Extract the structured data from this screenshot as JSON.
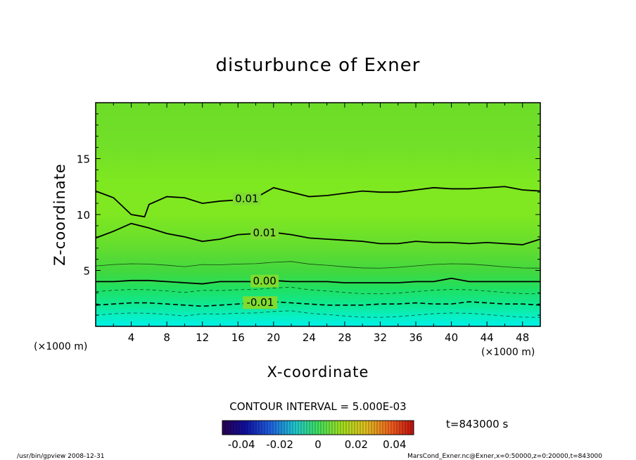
{
  "chart_data": {
    "type": "heatmap",
    "title": "disturbunce of Exner",
    "xlabel": "X-coordinate",
    "ylabel": "Z-coordinate",
    "x_unit": "(×1000 m)",
    "y_unit": "(×1000 m)",
    "xlim": [
      0,
      50
    ],
    "ylim": [
      0,
      20
    ],
    "x_ticks": [
      "4",
      "8",
      "12",
      "16",
      "20",
      "24",
      "28",
      "32",
      "36",
      "40",
      "44",
      "48"
    ],
    "y_ticks": [
      "5",
      "10",
      "15"
    ],
    "contour_interval_text": "CONTOUR INTERVAL = 5.000E-03",
    "time_text": "t=843000 s",
    "colorbar_ticks": [
      "-0.04",
      "-0.02",
      "0",
      "0.02",
      "0.04"
    ],
    "colorbar_range": [
      -0.05,
      0.05
    ],
    "contours": [
      {
        "label": "0.01",
        "level": 0.01,
        "x": [
          0,
          2,
          4,
          5.5,
          6,
          8,
          10,
          12,
          14,
          16,
          18,
          20,
          22,
          24,
          26,
          28,
          30,
          32,
          34,
          36,
          38,
          40,
          42,
          44,
          46,
          48,
          50
        ],
        "y": [
          12.1,
          11.5,
          10.0,
          9.8,
          10.9,
          11.6,
          11.5,
          11.0,
          11.2,
          11.3,
          11.5,
          12.4,
          12.0,
          11.6,
          11.7,
          11.9,
          12.1,
          12.0,
          12.0,
          12.2,
          12.4,
          12.3,
          12.3,
          12.4,
          12.5,
          12.2,
          12.1
        ]
      },
      {
        "label": "0.01",
        "level": 0.01,
        "x": [
          0,
          2,
          4,
          6,
          8,
          10,
          12,
          14,
          16,
          18,
          20,
          22,
          24,
          26,
          28,
          30,
          32,
          34,
          36,
          38,
          40,
          42,
          44,
          46,
          48,
          50
        ],
        "y": [
          7.9,
          8.5,
          9.2,
          8.8,
          8.3,
          8.0,
          7.6,
          7.8,
          8.2,
          8.3,
          8.4,
          8.2,
          7.9,
          7.8,
          7.7,
          7.6,
          7.4,
          7.4,
          7.6,
          7.5,
          7.5,
          7.4,
          7.5,
          7.4,
          7.3,
          7.8
        ]
      },
      {
        "label": "0.00",
        "level": 0.0,
        "x": [
          0,
          2,
          4,
          6,
          8,
          10,
          12,
          14,
          16,
          18,
          20,
          22,
          24,
          26,
          28,
          30,
          32,
          34,
          36,
          38,
          40,
          42,
          44,
          46,
          48,
          50
        ],
        "y": [
          4.0,
          4.0,
          4.1,
          4.1,
          4.0,
          3.9,
          3.8,
          4.0,
          4.0,
          4.0,
          4.1,
          4.0,
          4.0,
          4.0,
          3.9,
          3.9,
          3.9,
          3.9,
          4.0,
          4.0,
          4.3,
          4.0,
          4.0,
          4.0,
          4.0,
          4.0
        ]
      },
      {
        "label": "-0.01",
        "level": -0.01,
        "x": [
          0,
          2,
          4,
          6,
          8,
          10,
          12,
          14,
          16,
          18,
          20,
          22,
          24,
          26,
          28,
          30,
          32,
          34,
          36,
          38,
          40,
          42,
          44,
          46,
          48,
          50
        ],
        "y": [
          1.9,
          2.0,
          2.1,
          2.1,
          2.0,
          1.9,
          1.8,
          1.9,
          2.0,
          2.1,
          2.2,
          2.1,
          2.0,
          1.9,
          1.9,
          1.9,
          2.0,
          2.0,
          2.1,
          2.0,
          2.0,
          2.2,
          2.1,
          2.0,
          2.0,
          1.9
        ]
      }
    ]
  },
  "footer": {
    "left": "/usr/bin/gpview   2008-12-31",
    "right": "MarsCond_Exner.nc@Exner,x=0:50000,z=0:20000,t=843000"
  }
}
